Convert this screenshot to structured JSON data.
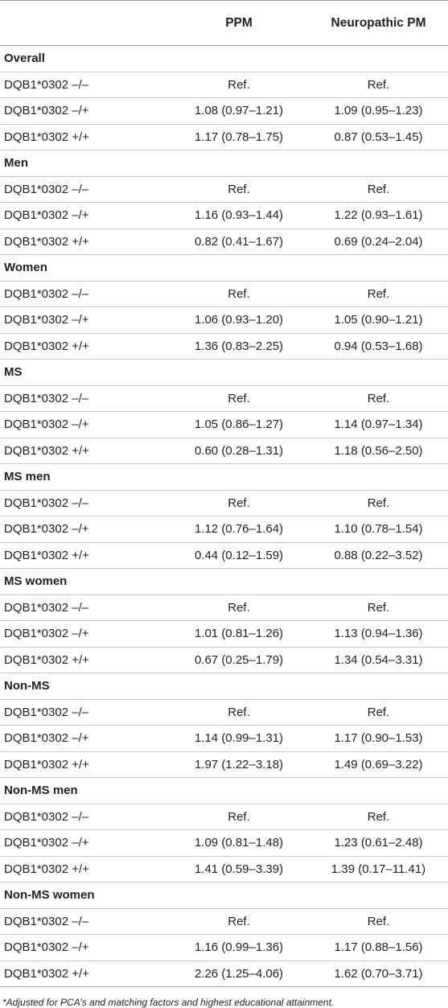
{
  "header": {
    "col0": "",
    "col1": "PPM",
    "col2": "Neuropathic PM"
  },
  "groups": [
    {
      "title": "Overall",
      "rows": [
        {
          "label": "DQB1*0302 –/–",
          "ppm": "Ref.",
          "npm": "Ref."
        },
        {
          "label": "DQB1*0302 –/+",
          "ppm": "1.08 (0.97–1.21)",
          "npm": "1.09 (0.95–1.23)"
        },
        {
          "label": "DQB1*0302 +/+",
          "ppm": "1.17 (0.78–1.75)",
          "npm": "0.87 (0.53–1.45)"
        }
      ]
    },
    {
      "title": "Men",
      "rows": [
        {
          "label": "DQB1*0302 –/–",
          "ppm": "Ref.",
          "npm": "Ref."
        },
        {
          "label": "DQB1*0302 –/+",
          "ppm": "1.16 (0.93–1.44)",
          "npm": "1.22 (0.93–1.61)"
        },
        {
          "label": "DQB1*0302 +/+",
          "ppm": "0.82 (0.41–1.67)",
          "npm": "0.69 (0.24–2.04)"
        }
      ]
    },
    {
      "title": "Women",
      "rows": [
        {
          "label": "DQB1*0302 –/–",
          "ppm": "Ref.",
          "npm": "Ref."
        },
        {
          "label": "DQB1*0302 –/+",
          "ppm": "1.06 (0.93–1.20)",
          "npm": "1.05 (0.90–1.21)"
        },
        {
          "label": "DQB1*0302 +/+",
          "ppm": "1.36 (0.83–2.25)",
          "npm": "0.94 (0.53–1.68)"
        }
      ]
    },
    {
      "title": "MS",
      "rows": [
        {
          "label": "DQB1*0302 –/–",
          "ppm": "Ref.",
          "npm": "Ref."
        },
        {
          "label": "DQB1*0302 –/+",
          "ppm": "1.05 (0.86–1.27)",
          "npm": "1.14 (0.97–1.34)"
        },
        {
          "label": "DQB1*0302 +/+",
          "ppm": "0.60 (0.28–1.31)",
          "npm": "1.18 (0.56–2.50)"
        }
      ]
    },
    {
      "title": "MS men",
      "rows": [
        {
          "label": "DQB1*0302 –/–",
          "ppm": "Ref.",
          "npm": "Ref."
        },
        {
          "label": "DQB1*0302 –/+",
          "ppm": "1.12 (0.76–1.64)",
          "npm": "1.10 (0.78–1.54)"
        },
        {
          "label": "DQB1*0302 +/+",
          "ppm": "0.44 (0.12–1.59)",
          "npm": "0.88 (0.22–3.52)"
        }
      ]
    },
    {
      "title": "MS women",
      "rows": [
        {
          "label": "DQB1*0302 –/–",
          "ppm": "Ref.",
          "npm": "Ref."
        },
        {
          "label": "DQB1*0302 –/+",
          "ppm": "1.01 (0.81–1.26)",
          "npm": "1.13 (0.94–1.36)"
        },
        {
          "label": "DQB1*0302 +/+",
          "ppm": "0.67 (0.25–1.79)",
          "npm": "1.34 (0.54–3.31)"
        }
      ]
    },
    {
      "title": "Non-MS",
      "rows": [
        {
          "label": "DQB1*0302 –/–",
          "ppm": "Ref.",
          "npm": "Ref."
        },
        {
          "label": "DQB1*0302 –/+",
          "ppm": "1.14 (0.99–1.31)",
          "npm": "1.17 (0.90–1.53)"
        },
        {
          "label": "DQB1*0302 +/+",
          "ppm": "1.97 (1.22–3.18)",
          "npm": "1.49 (0.69–3.22)"
        }
      ]
    },
    {
      "title": "Non-MS men",
      "rows": [
        {
          "label": "DQB1*0302 –/–",
          "ppm": "Ref.",
          "npm": "Ref."
        },
        {
          "label": "DQB1*0302 –/+",
          "ppm": "1.09 (0.81–1.48)",
          "npm": "1.23 (0.61–2.48)"
        },
        {
          "label": "DQB1*0302 +/+",
          "ppm": "1.41 (0.59–3.39)",
          "npm": "1.39 (0.17–11.41)"
        }
      ]
    },
    {
      "title": "Non-MS women",
      "rows": [
        {
          "label": "DQB1*0302 –/–",
          "ppm": "Ref.",
          "npm": "Ref."
        },
        {
          "label": "DQB1*0302 –/+",
          "ppm": "1.16 (0.99–1.36)",
          "npm": "1.17 (0.88–1.56)"
        },
        {
          "label": "DQB1*0302 +/+",
          "ppm": "2.26 (1.25–4.06)",
          "npm": "1.62 (0.70–3.71)"
        }
      ]
    }
  ],
  "footnote": "*Adjusted for PCA’s and matching factors and highest educational attainment."
}
